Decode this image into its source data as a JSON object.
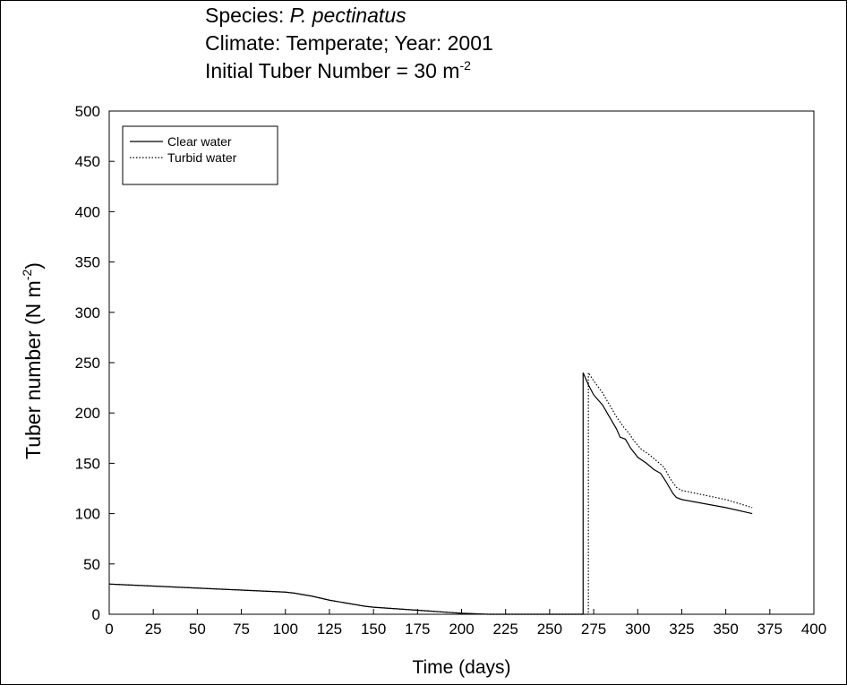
{
  "title": {
    "species_prefix": "Species: ",
    "species_name": "P. pectinatus",
    "climate_line": "Climate: Temperate; Year: 2001",
    "initial_prefix": "Initial Tuber Number = 30 m",
    "initial_exponent": "-2"
  },
  "chart_data": {
    "type": "line",
    "title": "Species: P. pectinatus / Climate: Temperate; Year: 2001 / Initial Tuber Number = 30 m-2",
    "xlabel": "Time (days)",
    "ylabel_main": "Tuber number (N m",
    "ylabel_exp": "-2",
    "ylabel_close": ")",
    "xlim": [
      0,
      400
    ],
    "ylim": [
      0,
      500
    ],
    "x_ticks": [
      "0",
      "25",
      "50",
      "75",
      "100",
      "125",
      "150",
      "175",
      "200",
      "225",
      "250",
      "275",
      "300",
      "325",
      "350",
      "375",
      "400"
    ],
    "y_ticks": [
      "0",
      "50",
      "100",
      "150",
      "200",
      "250",
      "300",
      "350",
      "400",
      "450",
      "500"
    ],
    "grid": false,
    "legend_position": "top-left",
    "series": [
      {
        "name": "Clear water",
        "style": "solid",
        "points": [
          [
            0,
            30
          ],
          [
            25,
            28
          ],
          [
            50,
            26
          ],
          [
            75,
            24
          ],
          [
            100,
            22
          ],
          [
            105,
            21
          ],
          [
            115,
            18
          ],
          [
            125,
            14
          ],
          [
            135,
            11
          ],
          [
            145,
            8
          ],
          [
            150,
            7
          ],
          [
            175,
            4
          ],
          [
            200,
            1
          ],
          [
            215,
            0
          ],
          [
            250,
            0
          ],
          [
            269,
            0
          ],
          [
            269,
            240
          ],
          [
            272,
            228
          ],
          [
            275,
            218
          ],
          [
            280,
            208
          ],
          [
            284,
            196
          ],
          [
            288,
            184
          ],
          [
            290,
            176
          ],
          [
            293,
            174
          ],
          [
            296,
            165
          ],
          [
            300,
            156
          ],
          [
            305,
            150
          ],
          [
            309,
            144
          ],
          [
            313,
            140
          ],
          [
            316,
            132
          ],
          [
            320,
            120
          ],
          [
            322,
            116
          ],
          [
            325,
            114
          ],
          [
            350,
            106
          ],
          [
            365,
            100
          ]
        ]
      },
      {
        "name": "Turbid water",
        "style": "dotted",
        "points": [
          [
            0,
            30
          ],
          [
            25,
            28
          ],
          [
            50,
            26
          ],
          [
            75,
            24
          ],
          [
            100,
            22
          ],
          [
            105,
            21
          ],
          [
            115,
            18
          ],
          [
            125,
            14
          ],
          [
            135,
            11
          ],
          [
            145,
            8
          ],
          [
            150,
            7
          ],
          [
            175,
            4
          ],
          [
            200,
            1
          ],
          [
            215,
            0
          ],
          [
            250,
            0
          ],
          [
            272,
            0
          ],
          [
            272,
            240
          ],
          [
            275,
            232
          ],
          [
            280,
            220
          ],
          [
            284,
            208
          ],
          [
            288,
            196
          ],
          [
            292,
            186
          ],
          [
            295,
            180
          ],
          [
            298,
            172
          ],
          [
            302,
            164
          ],
          [
            307,
            158
          ],
          [
            311,
            152
          ],
          [
            315,
            146
          ],
          [
            318,
            136
          ],
          [
            322,
            126
          ],
          [
            325,
            123
          ],
          [
            350,
            114
          ],
          [
            365,
            106
          ]
        ]
      }
    ]
  }
}
